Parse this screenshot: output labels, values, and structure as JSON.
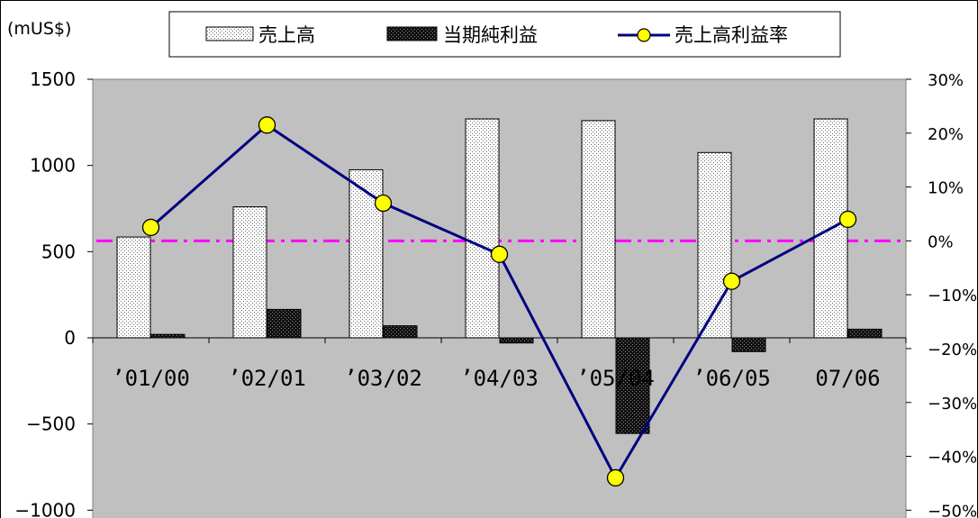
{
  "chart_data": {
    "type": "bar",
    "unit_label": "(mUS$)",
    "categories": [
      "’01/00",
      "’02/01",
      "’03/02",
      "’04/03",
      "’05/04",
      "’06/05",
      "07/06"
    ],
    "series": [
      {
        "name": "売上高",
        "type": "bar",
        "axis": "left",
        "pattern": "light-dots",
        "values": [
          585,
          760,
          975,
          1270,
          1260,
          1075,
          1270
        ]
      },
      {
        "name": "当期純利益",
        "type": "bar",
        "axis": "left",
        "pattern": "dark-dots",
        "values": [
          20,
          165,
          70,
          -30,
          -555,
          -80,
          50
        ]
      },
      {
        "name": "売上高利益率",
        "type": "line",
        "axis": "right",
        "color": "#000080",
        "marker_color": "#FFFF00",
        "values": [
          2.5,
          21.5,
          7.0,
          -2.5,
          -44.0,
          -7.5,
          4.0
        ]
      }
    ],
    "left_axis": {
      "min": -1000,
      "max": 1500,
      "step": 500,
      "ticks": [
        "1500",
        "1000",
        "500",
        "0",
        "−500",
        "−1000"
      ]
    },
    "right_axis": {
      "min": -50,
      "max": 30,
      "step": 10,
      "ticks": [
        "30%",
        "20%",
        "10%",
        "0%",
        "−10%",
        "−20%",
        "−30%",
        "−40%",
        "−50%"
      ]
    },
    "reference_line": {
      "value": 0,
      "axis": "right",
      "color": "#FF00FF",
      "style": "dash-dot"
    },
    "plot_background": "#C0C0C0",
    "legend": {
      "position": "top",
      "items": [
        "売上高",
        "当期純利益",
        "売上高利益率"
      ]
    }
  }
}
